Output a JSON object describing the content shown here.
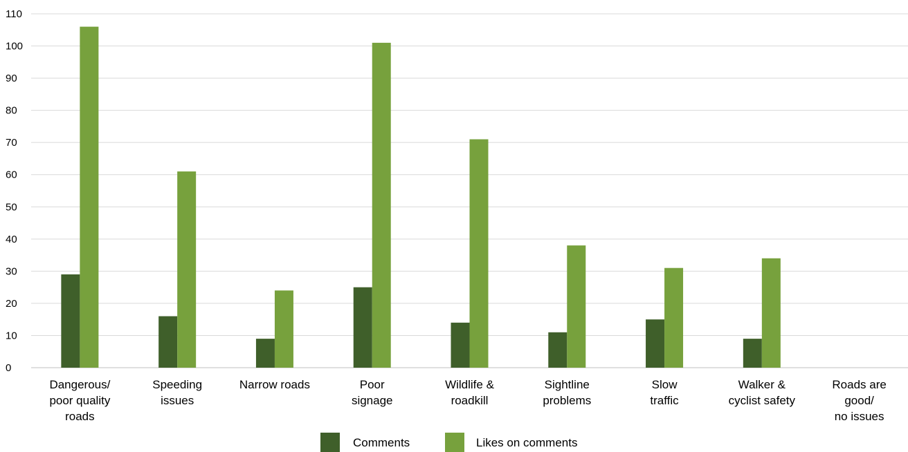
{
  "chart_data": {
    "type": "bar",
    "categories": [
      [
        "Dangerous/",
        "poor quality",
        "roads"
      ],
      [
        "Speeding",
        "issues"
      ],
      [
        "Narrow roads"
      ],
      [
        "Poor",
        "signage"
      ],
      [
        "Wildlife &",
        "roadkill"
      ],
      [
        "Sightline",
        "problems"
      ],
      [
        "Slow",
        "traffic"
      ],
      [
        "Walker &",
        "cyclist safety"
      ],
      [
        "Roads are",
        "good/",
        "no issues"
      ]
    ],
    "series": [
      {
        "name": "Comments",
        "values": [
          29,
          16,
          9,
          25,
          14,
          11,
          15,
          9,
          0
        ]
      },
      {
        "name": "Likes on comments",
        "values": [
          106,
          61,
          24,
          101,
          71,
          38,
          31,
          34,
          0
        ]
      }
    ],
    "ylim": [
      0,
      110
    ],
    "yticks": [
      0,
      10,
      20,
      30,
      40,
      50,
      60,
      70,
      80,
      90,
      100,
      110
    ],
    "grid": true,
    "legend_position": "bottom",
    "colors": [
      "#3f5f2a",
      "#77a13d"
    ]
  }
}
